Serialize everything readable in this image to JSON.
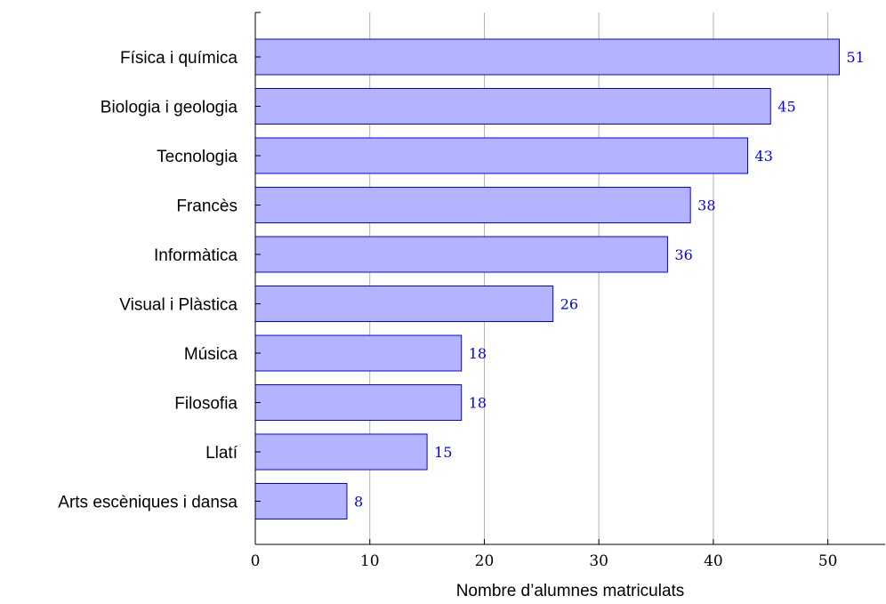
{
  "chart_data": {
    "type": "bar",
    "orientation": "horizontal",
    "categories": [
      "Física i química",
      "Biologia i geologia",
      "Tecnologia",
      "Francès",
      "Informàtica",
      "Visual i Plàstica",
      "Música",
      "Filosofia",
      "Llatí",
      "Arts escèniques i dansa"
    ],
    "values": [
      51,
      45,
      43,
      38,
      36,
      26,
      18,
      18,
      15,
      8
    ],
    "value_labels": [
      "51",
      "45",
      "43",
      "38",
      "36",
      "26",
      "18",
      "18",
      "15",
      "8"
    ],
    "x_ticks": [
      0,
      10,
      20,
      30,
      40,
      50
    ],
    "x_tick_labels": [
      "0",
      "10",
      "20",
      "30",
      "40",
      "50"
    ],
    "xlim": [
      0,
      55
    ],
    "xlabel": "Nombre d’alumnes matriculats",
    "ylabel": "",
    "title": "",
    "grid": "vertical",
    "colors": {
      "bar_fill": "#b3b3ff",
      "bar_stroke": "#0000ff",
      "value_label": "#0000ff",
      "grid": "#b0b0b0",
      "axis": "#000000"
    }
  }
}
